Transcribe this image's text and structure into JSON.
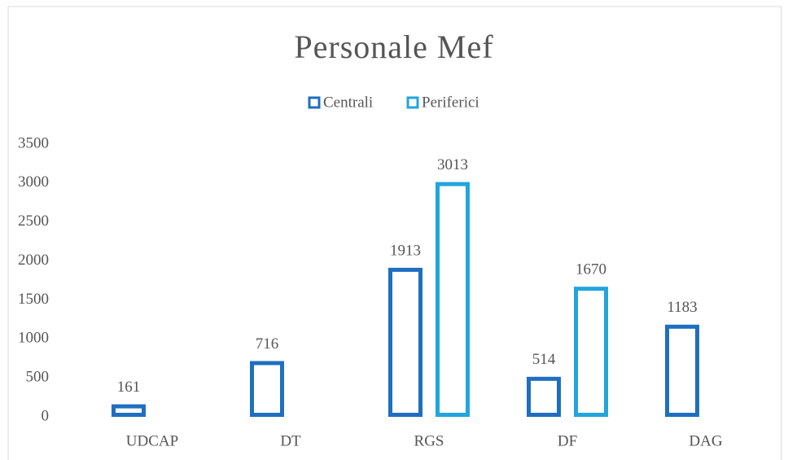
{
  "chart_data": {
    "type": "bar",
    "title": "Personale Mef",
    "categories": [
      "UDCAP",
      "DT",
      "RGS",
      "DF",
      "DAG"
    ],
    "series": [
      {
        "name": "Centrali",
        "color": "#1f6fc1",
        "values": [
          161,
          716,
          1913,
          514,
          1183
        ]
      },
      {
        "name": "Periferici",
        "color": "#22a5dc",
        "values": [
          null,
          null,
          3013,
          1670,
          null
        ]
      }
    ],
    "ylim": [
      0,
      3500
    ],
    "yticks": [
      0,
      500,
      1000,
      1500,
      2000,
      2500,
      3000,
      3500
    ],
    "grid": false,
    "legend": "top"
  }
}
